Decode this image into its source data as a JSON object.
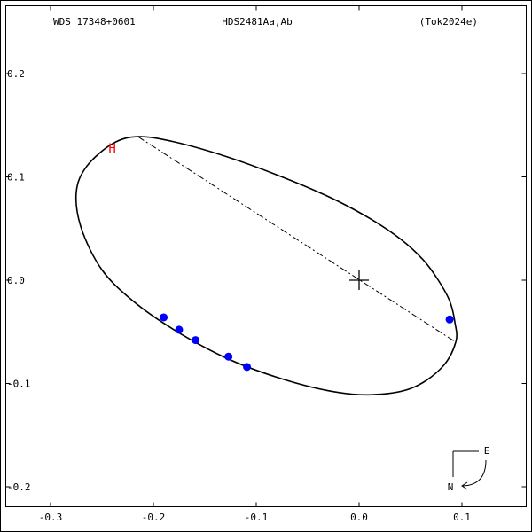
{
  "header": {
    "left": "WDS 17348+0601",
    "center": "HDS2481Aa,Ab",
    "right": "(Tok2024e)"
  },
  "compass": {
    "east": "E",
    "north": "N"
  },
  "colors": {
    "background": "#ffffff",
    "axes": "#000000",
    "orbit": "#000000",
    "observations": "#0000ff",
    "hipparcos": "#ff0000"
  },
  "chart_data": {
    "type": "scatter",
    "xlim": [
      -0.3,
      0.1
    ],
    "ylim": [
      -0.2,
      0.2
    ],
    "x_ticks": [
      "-0.3",
      "-0.2",
      "-0.1",
      "0.0",
      "0.1"
    ],
    "x_tick_values": [
      -0.3,
      -0.2,
      -0.1,
      0.0,
      0.1
    ],
    "y_ticks": [
      "0.2",
      "0.1",
      "0.0",
      "-0.1",
      "-0.2"
    ],
    "y_tick_values": [
      0.2,
      0.1,
      0.0,
      -0.1,
      -0.2
    ],
    "x_inverted": true,
    "orbit": [
      [
        0.094,
        -0.06
      ],
      [
        0.093,
        -0.04
      ],
      [
        0.088,
        -0.02
      ],
      [
        0.077,
        0.0
      ],
      [
        0.062,
        0.02
      ],
      [
        0.04,
        0.04
      ],
      [
        0.01,
        0.06
      ],
      [
        -0.03,
        0.081
      ],
      [
        -0.08,
        0.102
      ],
      [
        -0.13,
        0.12
      ],
      [
        -0.18,
        0.134
      ],
      [
        -0.215,
        0.139
      ],
      [
        -0.24,
        0.132
      ],
      [
        -0.265,
        0.11
      ],
      [
        -0.275,
        0.085
      ],
      [
        -0.27,
        0.05
      ],
      [
        -0.25,
        0.01
      ],
      [
        -0.22,
        -0.02
      ],
      [
        -0.18,
        -0.048
      ],
      [
        -0.13,
        -0.075
      ],
      [
        -0.08,
        -0.094
      ],
      [
        -0.03,
        -0.107
      ],
      [
        0.01,
        -0.111
      ],
      [
        0.05,
        -0.105
      ],
      [
        0.08,
        -0.085
      ],
      [
        0.094,
        -0.06
      ]
    ],
    "node_line": [
      [
        -0.215,
        0.139
      ],
      [
        0.094,
        -0.06
      ]
    ],
    "primary": [
      0.0,
      0.0
    ],
    "observations": [
      [
        -0.19,
        -0.036
      ],
      [
        -0.175,
        -0.048
      ],
      [
        -0.159,
        -0.058
      ],
      [
        -0.127,
        -0.074
      ],
      [
        -0.109,
        -0.084
      ],
      [
        0.088,
        -0.038
      ]
    ],
    "hipparcos_marker": {
      "label": "H",
      "x": -0.24,
      "y": 0.128
    }
  }
}
